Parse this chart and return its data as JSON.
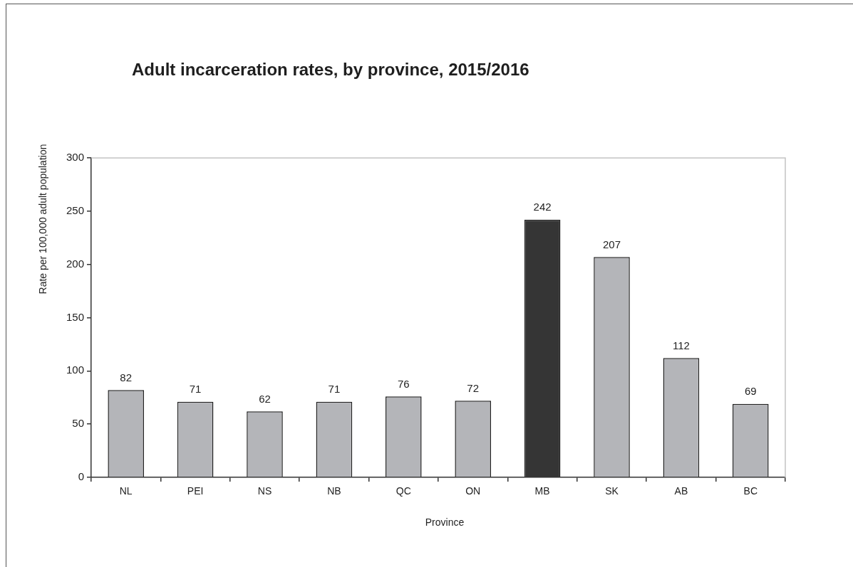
{
  "chart_data": {
    "type": "bar",
    "title": "Adult incarceration rates, by province, 2015/2016",
    "xlabel": "Province",
    "ylabel": "Rate per 100,000 adult population",
    "categories": [
      "NL",
      "PEI",
      "NS",
      "NB",
      "QC",
      "ON",
      "MB",
      "SK",
      "AB",
      "BC"
    ],
    "values": [
      82,
      71,
      62,
      71,
      76,
      72,
      242,
      207,
      112,
      69
    ],
    "colors": [
      "#b4b5b9",
      "#b4b5b9",
      "#b4b5b9",
      "#b4b5b9",
      "#b4b5b9",
      "#b4b5b9",
      "#353535",
      "#b4b5b9",
      "#b4b5b9",
      "#b4b5b9"
    ],
    "ylim": [
      0,
      300
    ],
    "yticks": [
      0,
      50,
      100,
      150,
      200,
      250,
      300
    ],
    "data_labels": true
  }
}
